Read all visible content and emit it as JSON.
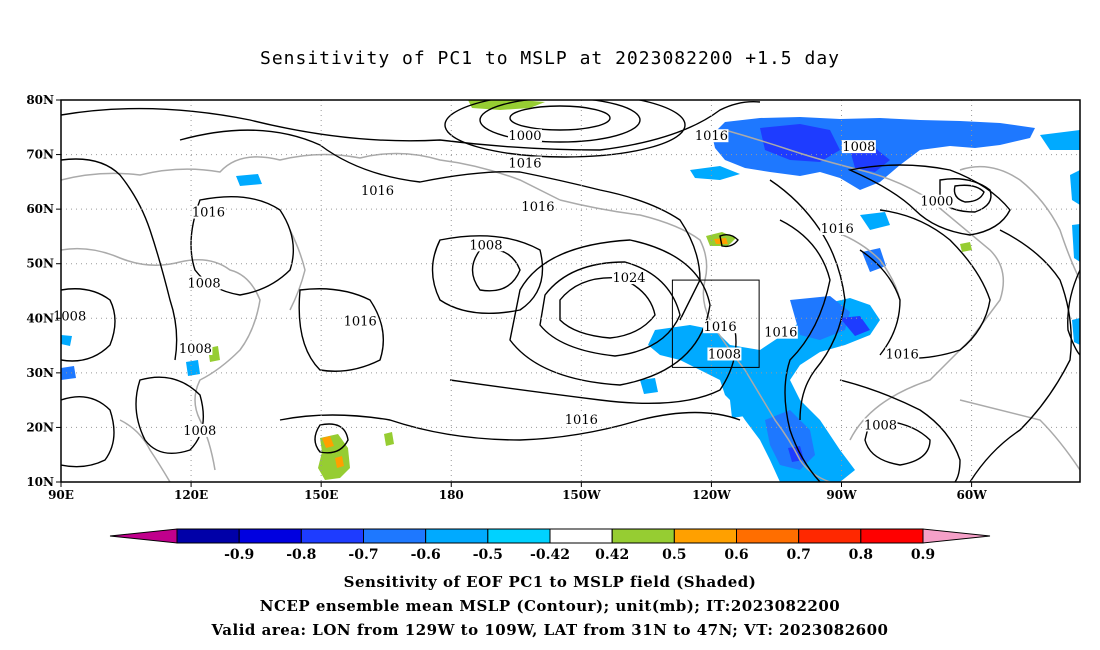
{
  "title": "Sensitivity of PC1 to MSLP at 2023082200 +1.5 day",
  "axes": {
    "lat_labels": [
      "10N",
      "20N",
      "30N",
      "40N",
      "50N",
      "60N",
      "70N",
      "80N"
    ],
    "lon_labels": [
      "90E",
      "120E",
      "150E",
      "180",
      "150W",
      "120W",
      "90W",
      "60W"
    ],
    "lat_range": [
      10,
      80
    ],
    "lon_range_east": [
      90,
      325
    ],
    "grid": "dotted"
  },
  "colorbar": {
    "tick_labels": [
      "-0.9",
      "-0.8",
      "-0.7",
      "-0.6",
      "-0.5",
      "-0.42",
      "0.42",
      "0.5",
      "0.6",
      "0.7",
      "0.8",
      "0.9"
    ],
    "colors": [
      "#c0008c",
      "#0000a8",
      "#0000e0",
      "#1e3cff",
      "#1e78ff",
      "#00aaff",
      "#00d2ff",
      "#ffffff",
      "#96cd32",
      "#ffa000",
      "#ff6e00",
      "#ff2800",
      "#ff0000",
      "#f5a0c8"
    ]
  },
  "contour_labels": [
    {
      "text": "1000",
      "lon": 197,
      "lat": 73
    },
    {
      "text": "1016",
      "lon": 197,
      "lat": 68
    },
    {
      "text": "1016",
      "lon": 163,
      "lat": 63
    },
    {
      "text": "1016",
      "lon": 124,
      "lat": 59
    },
    {
      "text": "1016",
      "lon": 200,
      "lat": 60
    },
    {
      "text": "1008",
      "lon": 188,
      "lat": 53
    },
    {
      "text": "1016",
      "lon": 240,
      "lat": 73
    },
    {
      "text": "1008",
      "lon": 274,
      "lat": 71
    },
    {
      "text": "1000",
      "lon": 292,
      "lat": 61
    },
    {
      "text": "1016",
      "lon": 269,
      "lat": 56
    },
    {
      "text": "1008",
      "lon": 123,
      "lat": 46
    },
    {
      "text": "1024",
      "lon": 221,
      "lat": 47
    },
    {
      "text": "1008",
      "lon": 92,
      "lat": 40
    },
    {
      "text": "1016",
      "lon": 159,
      "lat": 39
    },
    {
      "text": "1008",
      "lon": 121,
      "lat": 34
    },
    {
      "text": "1016",
      "lon": 242,
      "lat": 38
    },
    {
      "text": "1016",
      "lon": 256,
      "lat": 37
    },
    {
      "text": "1008",
      "lon": 243,
      "lat": 33
    },
    {
      "text": "1016",
      "lon": 284,
      "lat": 33
    },
    {
      "text": "1016",
      "lon": 210,
      "lat": 21
    },
    {
      "text": "1008",
      "lon": 122,
      "lat": 19
    },
    {
      "text": "1008",
      "lon": 279,
      "lat": 20
    }
  ],
  "valid_box": {
    "lon_west": [
      129,
      109
    ],
    "lat": [
      31,
      47
    ]
  },
  "captions": [
    "Sensitivity of EOF PC1 to MSLP field (Shaded)",
    "NCEP ensemble mean MSLP (Contour); unit(mb); IT:2023082200",
    "Valid area: LON from 129W to 109W, LAT from 31N to 47N; VT: 2023082600"
  ]
}
